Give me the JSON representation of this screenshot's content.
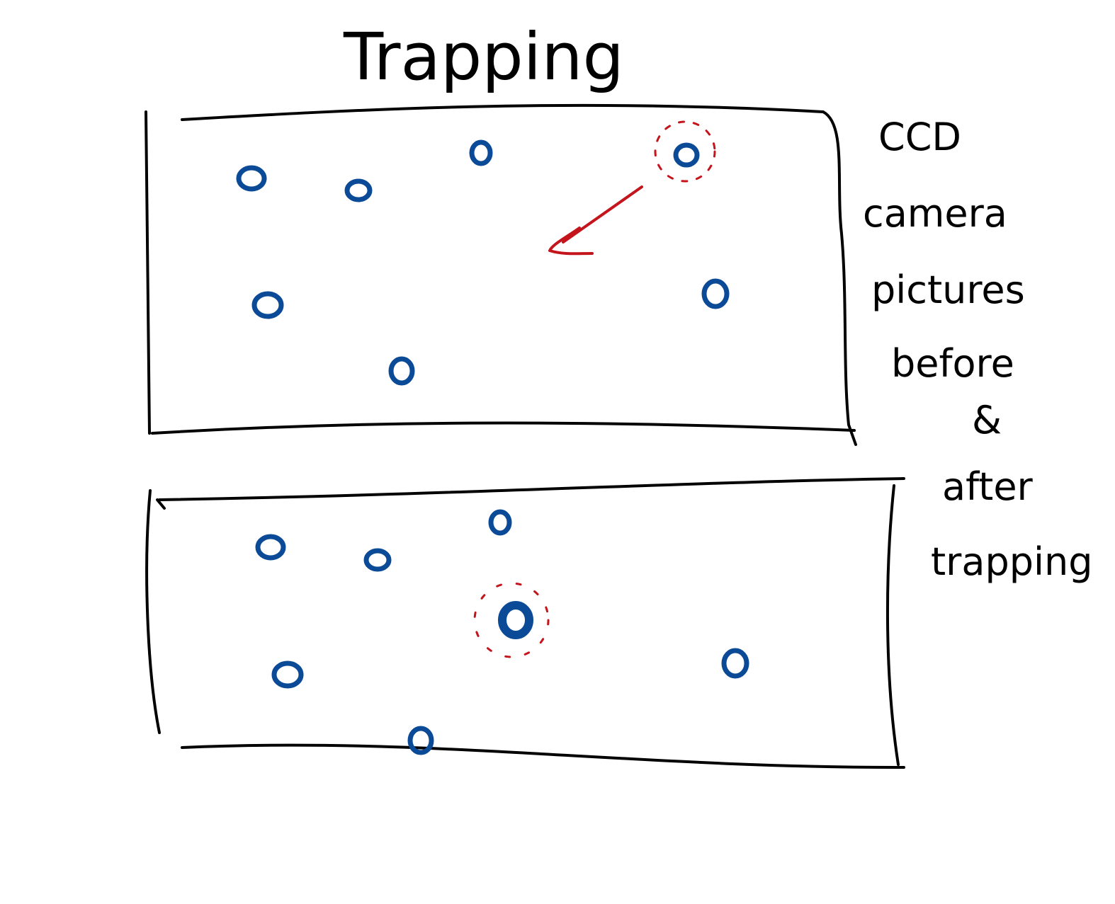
{
  "title": "Trapping",
  "side_note": {
    "lines": [
      "CCD",
      "camera",
      "pictures",
      "before",
      "&",
      "after",
      "trapping"
    ]
  },
  "colors": {
    "ink": "#000000",
    "particle": "#0b4a96",
    "highlight": "#c4141c",
    "background": "#ffffff"
  },
  "panels": {
    "before": {
      "particle_count": 7,
      "highlighted_particle": "top-right",
      "arrow": "toward center"
    },
    "after": {
      "particle_count": 7,
      "highlighted_particle": "center"
    }
  }
}
